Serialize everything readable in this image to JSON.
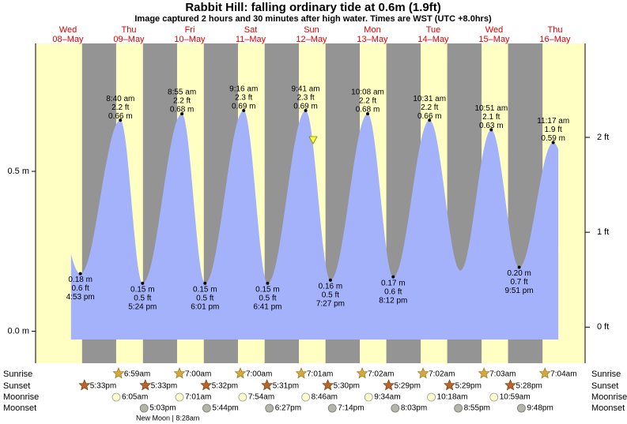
{
  "title": "Rabbit Hill: falling  ordinary tide at 0.6m (1.9ft)",
  "subtitle": "Image captured 2 hours and 30 minutes after high water. Times are WST (UTC +8.0hrs)",
  "chart_data": {
    "type": "area",
    "weekdays": [
      "Wed",
      "Thu",
      "Fri",
      "Sat",
      "Sun",
      "Mon",
      "Tue",
      "Wed",
      "Thu"
    ],
    "categories": [
      "08–May",
      "09–May",
      "10–May",
      "11–May",
      "12–May",
      "13–May",
      "14–May",
      "15–May",
      "16–May"
    ],
    "color": "#a4b2fb",
    "ylim": [
      -0.1,
      0.9
    ],
    "yticks": [
      {
        "value": 0,
        "label": "0.0 m"
      },
      {
        "value": 0.5,
        "label": "0.5 m"
      }
    ],
    "y2lim": [
      -0.38,
      2.99
    ],
    "y2ticks": [
      {
        "value": 0,
        "label": "0 ft"
      },
      {
        "value": 1,
        "label": "1 ft"
      },
      {
        "value": 2,
        "label": "2 ft"
      }
    ],
    "extremes": {
      "x": [
        "4:53 pm",
        "8:40 am",
        "5:24 pm",
        "8:55 am",
        "6:01 pm",
        "9:16 am",
        "6:41 pm",
        "9:41 am",
        "7:27 pm",
        "10:08 am",
        "8:12 pm",
        "10:31 am",
        null,
        "10:51 am",
        "9:51 pm",
        "11:17 am"
      ],
      "values": [
        0.18,
        0.66,
        0.15,
        0.68,
        0.15,
        0.69,
        0.15,
        0.69,
        0.16,
        0.68,
        0.17,
        0.66,
        0.19,
        0.63,
        0.2,
        0.59
      ],
      "value_labels": [
        "0.18 m",
        "0.66 m",
        "0.15 m",
        "0.68 m",
        "0.15 m",
        "0.69 m",
        "0.15 m",
        "0.69 m",
        "0.16 m",
        "0.68 m",
        "0.17 m",
        "0.66 m",
        null,
        "0.63 m",
        "0.20 m",
        "0.59 m"
      ],
      "ft_labels": [
        "0.6 ft",
        "2.2 ft",
        "0.5 ft",
        "2.2 ft",
        "0.5 ft",
        "2.3 ft",
        "0.5 ft",
        "2.3 ft",
        "0.5 ft",
        "2.2 ft",
        "0.6 ft",
        "2.2 ft",
        null,
        "2.1 ft",
        "0.7 ft",
        "1.9 ft"
      ]
    }
  },
  "almanac": {
    "rows": [
      {
        "label": "Sunrise",
        "times": [
          null,
          "6:59am",
          "7:00am",
          "7:00am",
          "7:01am",
          "7:02am",
          "7:02am",
          "7:03am",
          "7:04am"
        ]
      },
      {
        "label": "Sunset",
        "times": [
          "5:33pm",
          "5:33pm",
          "5:32pm",
          "5:31pm",
          "5:30pm",
          "5:29pm",
          "5:29pm",
          "5:28pm",
          null
        ]
      },
      {
        "label": "Moonrise",
        "times": [
          null,
          "6:05am",
          "7:01am",
          "7:54am",
          "8:46am",
          "9:34am",
          "10:18am",
          "10:59am",
          null
        ]
      },
      {
        "label": "Moonset",
        "times": [
          null,
          "5:03pm",
          "5:44pm",
          "6:27pm",
          "7:14pm",
          "8:03pm",
          "8:55pm",
          "9:48pm",
          null
        ]
      }
    ],
    "moon_phase": "New Moon | 8:28am"
  }
}
